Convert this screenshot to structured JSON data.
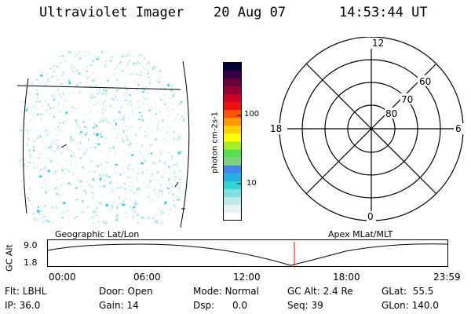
{
  "header": {
    "instrument": "Ultraviolet Imager",
    "date": "20 Aug 07",
    "time": "14:53:44 UT"
  },
  "colorbar": {
    "unit_label": "photon cm-2s-1",
    "ticks": [
      "100",
      "10"
    ],
    "colors": [
      "#ffffff",
      "#e8f4f4",
      "#bfeaea",
      "#7fe0e0",
      "#33d6d6",
      "#22b3e0",
      "#3f88ee",
      "#7fd07f",
      "#55e055",
      "#a6ee22",
      "#ffff00",
      "#ffd000",
      "#ff9900",
      "#ff5500",
      "#ee1111",
      "#cc0022",
      "#990033",
      "#66003a",
      "#330044",
      "#000033"
    ]
  },
  "polar": {
    "lat_labels": [
      "80",
      "70",
      "60"
    ],
    "mlt_labels": {
      "top": "12",
      "left": "18",
      "right": "6",
      "bottom": "0"
    }
  },
  "timeline": {
    "y_label": "GC Alt",
    "y_ticks": [
      "9.0",
      "1.8"
    ],
    "left_title": "Geographic Lat/Lon",
    "right_title": "Apex MLat/MLT",
    "x_ticks": [
      "00:00",
      "06:00",
      "12:00",
      "18:00",
      "23:59"
    ],
    "marker_color": "#ff0000"
  },
  "status": {
    "flt": "Flt: LBHL",
    "ip": "IP: 36.0",
    "door": "Door: Open",
    "gain": "Gain: 14",
    "mode": "Mode: Normal",
    "dsp": "Dsp:      0.0",
    "gc_alt": "GC Alt: 2.4 Re",
    "seq": "Seq: 39",
    "glat": "GLat:  55.5",
    "glon": "GLon: 140.0"
  }
}
